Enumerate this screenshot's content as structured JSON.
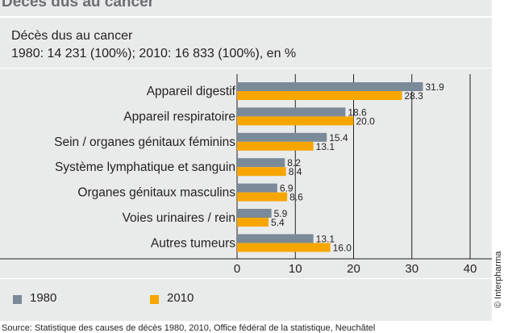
{
  "header": {
    "title": "Décès dus au cancer",
    "subtitle_line1": "Décès dus au cancer",
    "subtitle_line2": "1980: 14 231 (100%); 2010: 16 833 (100%), en %"
  },
  "colors": {
    "series_1980": "#7b8a99",
    "series_2010": "#f7a600",
    "grid": "#231f20"
  },
  "chart_data": {
    "type": "bar",
    "orientation": "horizontal",
    "categories": [
      "Appareil digestif",
      "Appareil respiratoire",
      "Sein / organes génitaux féminins",
      "Système lymphatique et sanguin",
      "Organes génitaux masculins",
      "Voies urinaires / rein",
      "Autres tumeurs"
    ],
    "series": [
      {
        "name": "1980",
        "values": [
          31.9,
          18.6,
          15.4,
          8.2,
          6.9,
          5.9,
          13.1
        ],
        "labels": [
          "31.9",
          "18.6",
          "15.4",
          "8.2",
          "6.9",
          "5.9",
          "13.1"
        ]
      },
      {
        "name": "2010",
        "values": [
          28.3,
          20.0,
          13.1,
          8.4,
          8.6,
          5.4,
          16.0
        ],
        "labels": [
          "28.3",
          "20.0",
          "13.1",
          "8.4",
          "8.6",
          "5.4",
          "16.0"
        ]
      }
    ],
    "xlim": [
      0,
      40
    ],
    "xticks": [
      "0",
      "10",
      "20",
      "30",
      "40"
    ],
    "grid": "vertical",
    "legend_position": "bottom-left"
  },
  "legend": {
    "item_1980": "1980",
    "item_2010": "2010"
  },
  "credit": "© Interpharma",
  "source": "Source: Statistique des causes de décès 1980, 2010, Office fédéral de la statistique, Neuchâtel"
}
